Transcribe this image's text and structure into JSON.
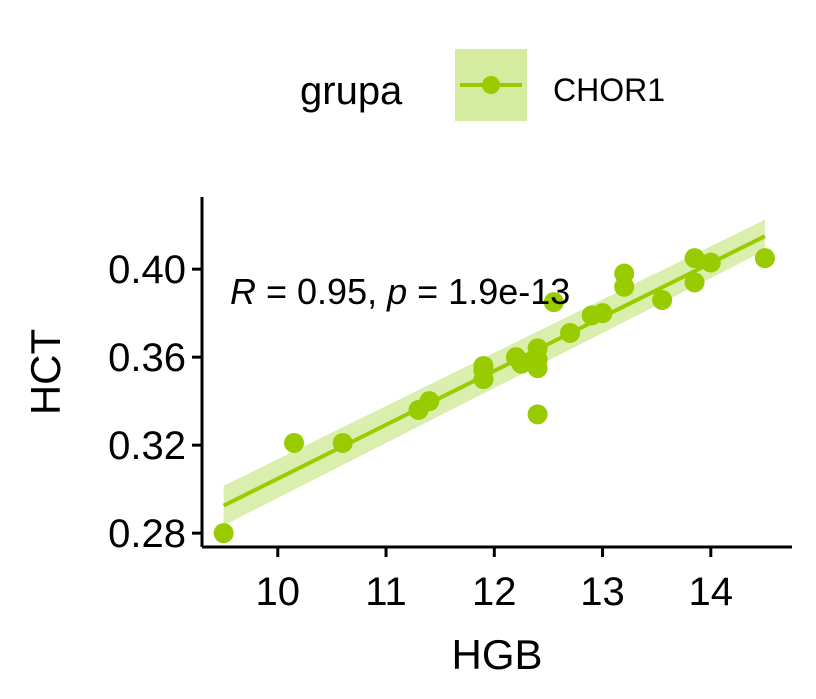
{
  "chart_data": {
    "type": "scatter",
    "xlabel": "HGB",
    "ylabel": "HCT",
    "xlim": [
      9.3,
      14.75
    ],
    "ylim": [
      0.2737,
      0.4328
    ],
    "x_ticks": [
      10,
      11,
      12,
      13,
      14
    ],
    "x_tick_labels": [
      "10",
      "11",
      "12",
      "13",
      "14"
    ],
    "y_ticks": [
      0.28,
      0.32,
      0.36,
      0.4
    ],
    "y_tick_labels": [
      "0.28",
      "0.32",
      "0.36",
      "0.40"
    ],
    "grid": false,
    "legend": {
      "position": "top",
      "title": "grupa",
      "entries": [
        "CHOR1"
      ]
    },
    "annotation": {
      "r_symbol": "R",
      "r_text": " = 0.95, ",
      "p_symbol": "p",
      "p_text": " = 1.9e-13"
    },
    "colors": {
      "points": "#99CC00",
      "band": "#D4EBA0"
    },
    "series": [
      {
        "name": "CHOR1",
        "points": [
          [
            9.5,
            0.28
          ],
          [
            10.15,
            0.321
          ],
          [
            10.6,
            0.321
          ],
          [
            11.3,
            0.336
          ],
          [
            11.4,
            0.34
          ],
          [
            11.9,
            0.356
          ],
          [
            11.9,
            0.354
          ],
          [
            11.9,
            0.35
          ],
          [
            12.2,
            0.36
          ],
          [
            12.25,
            0.357
          ],
          [
            12.4,
            0.364
          ],
          [
            12.4,
            0.359
          ],
          [
            12.4,
            0.355
          ],
          [
            12.4,
            0.334
          ],
          [
            12.55,
            0.385
          ],
          [
            12.7,
            0.371
          ],
          [
            12.9,
            0.379
          ],
          [
            13.0,
            0.38
          ],
          [
            13.2,
            0.398
          ],
          [
            13.2,
            0.392
          ],
          [
            13.55,
            0.386
          ],
          [
            13.85,
            0.405
          ],
          [
            13.85,
            0.394
          ],
          [
            14.0,
            0.403
          ],
          [
            14.5,
            0.405
          ]
        ],
        "fit": {
          "x": [
            9.5,
            14.5
          ],
          "y": [
            0.2925,
            0.415
          ],
          "ci_low": [
            0.2835,
            0.4085
          ],
          "ci_high": [
            0.3015,
            0.4225
          ]
        }
      }
    ]
  }
}
